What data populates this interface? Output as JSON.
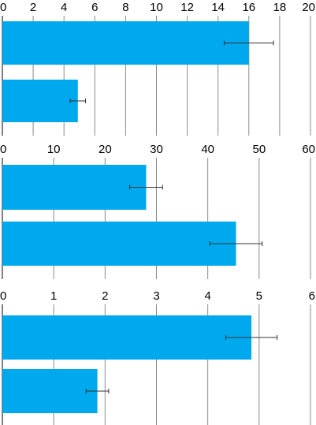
{
  "colors": {
    "bar": "#00a9ee",
    "grid": "#8a8a8a",
    "error_bar": "#333333",
    "tick_text": "#000000"
  },
  "chart_data": [
    {
      "type": "bar",
      "orientation": "horizontal",
      "xlim": [
        0,
        20
      ],
      "x_ticks": [
        "0",
        "2",
        "4",
        "6",
        "8",
        "10",
        "12",
        "14",
        "16",
        "18",
        "20"
      ],
      "bars": [
        {
          "value": 16.0,
          "error": 1.6
        },
        {
          "value": 4.9,
          "error": 0.5
        }
      ],
      "grid": true
    },
    {
      "type": "bar",
      "orientation": "horizontal",
      "xlim": [
        0,
        60
      ],
      "x_ticks": [
        "0",
        "10",
        "20",
        "30",
        "40",
        "50",
        "60"
      ],
      "bars": [
        {
          "value": 28.0,
          "error": 3.2
        },
        {
          "value": 45.5,
          "error": 5.1
        }
      ],
      "grid": true
    },
    {
      "type": "bar",
      "orientation": "horizontal",
      "xlim": [
        0,
        6
      ],
      "x_ticks": [
        "0",
        "1",
        "2",
        "3",
        "4",
        "5",
        "6"
      ],
      "bars": [
        {
          "value": 4.85,
          "error": 0.5
        },
        {
          "value": 1.85,
          "error": 0.22
        }
      ],
      "grid": true
    }
  ]
}
